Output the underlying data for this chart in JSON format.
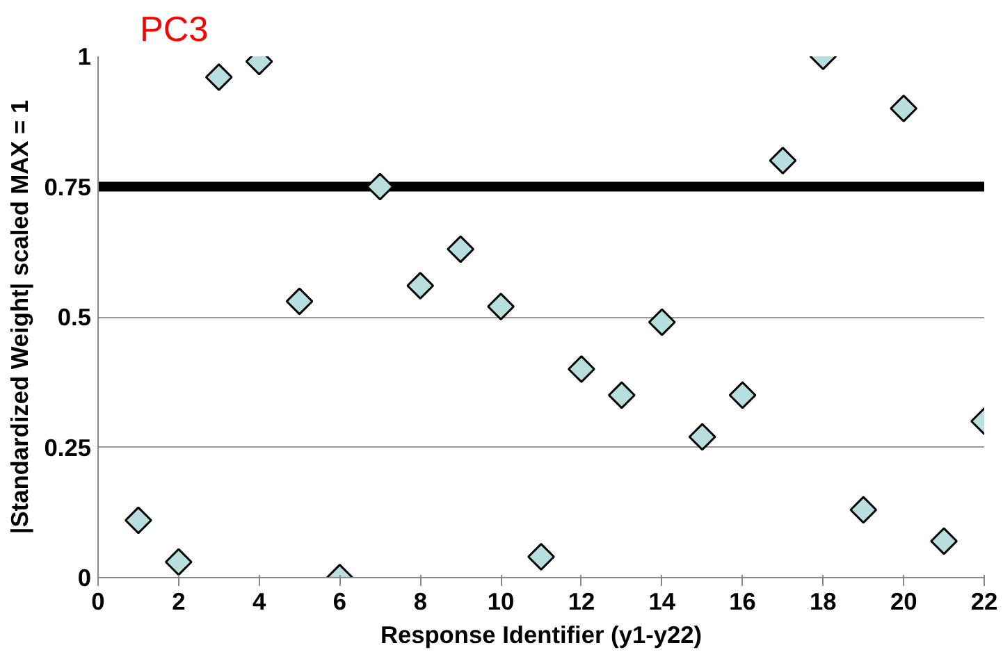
{
  "chart_data": {
    "type": "scatter",
    "title": "PC3",
    "xlabel": "Response Identifier (y1-y22)",
    "ylabel": "|Standardized Weight| scaled MAX = 1",
    "x": [
      1,
      2,
      3,
      4,
      5,
      6,
      7,
      8,
      9,
      10,
      11,
      12,
      13,
      14,
      15,
      16,
      17,
      18,
      19,
      20,
      21,
      22
    ],
    "series": [
      {
        "color": "#b7dfe0",
        "values": [
          0.11,
          0.03,
          0.96,
          0.99,
          0.53,
          0.0,
          0.75,
          0.56,
          0.63,
          0.52,
          0.04,
          0.4,
          0.35,
          0.49,
          0.27,
          0.35,
          0.8,
          1.0,
          0.13,
          0.9,
          0.07,
          0.3
        ]
      }
    ],
    "marker": "diamond",
    "xlim": [
      0,
      22
    ],
    "ylim": [
      0,
      1
    ],
    "xticks": [
      0,
      2,
      4,
      6,
      8,
      10,
      12,
      14,
      16,
      18,
      20,
      22
    ],
    "yticks": [
      0,
      {
        "value": 0.25,
        "label": "0.25"
      },
      {
        "value": 0.5,
        "label": "0.5"
      },
      {
        "value": 0.75,
        "label": "0.75"
      },
      1
    ],
    "grid": "y",
    "ref_lines": [
      {
        "axis": "y",
        "value": 0.75,
        "color": "#000000"
      }
    ]
  }
}
